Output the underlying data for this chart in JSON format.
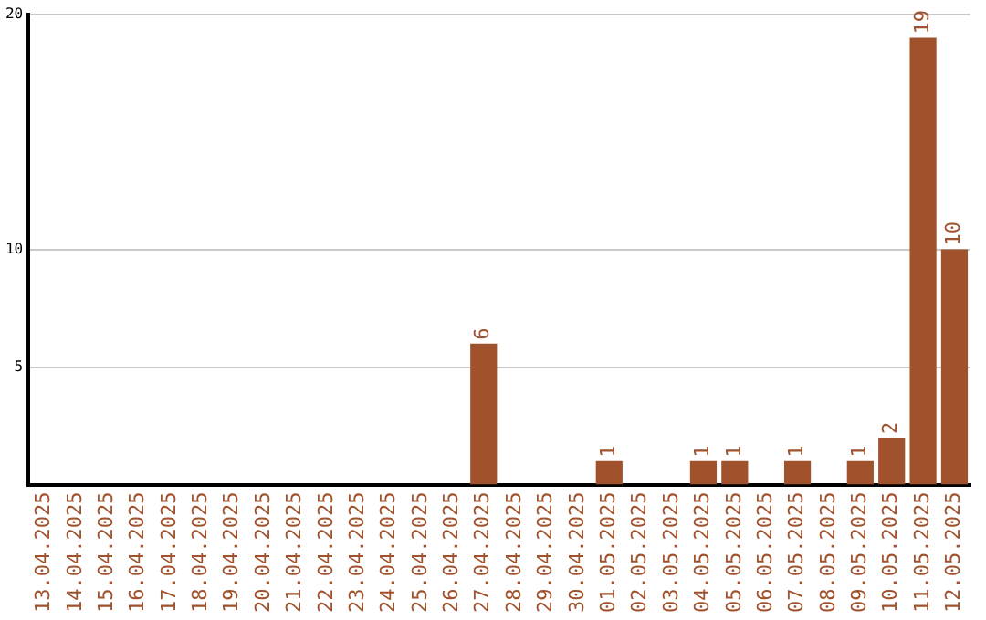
{
  "chart_data": {
    "type": "bar",
    "categories": [
      "13.04.2025",
      "14.04.2025",
      "15.04.2025",
      "16.04.2025",
      "17.04.2025",
      "18.04.2025",
      "19.04.2025",
      "20.04.2025",
      "21.04.2025",
      "22.04.2025",
      "23.04.2025",
      "24.04.2025",
      "25.04.2025",
      "26.04.2025",
      "27.04.2025",
      "28.04.2025",
      "29.04.2025",
      "30.04.2025",
      "01.05.2025",
      "02.05.2025",
      "03.05.2025",
      "04.05.2025",
      "05.05.2025",
      "06.05.2025",
      "07.05.2025",
      "08.05.2025",
      "09.05.2025",
      "10.05.2025",
      "11.05.2025",
      "12.05.2025"
    ],
    "values": [
      0,
      0,
      0,
      0,
      0,
      0,
      0,
      0,
      0,
      0,
      0,
      0,
      0,
      0,
      6,
      0,
      0,
      0,
      1,
      0,
      0,
      1,
      1,
      0,
      1,
      0,
      1,
      2,
      19,
      10
    ],
    "value_labels": [
      null,
      null,
      null,
      null,
      null,
      null,
      null,
      null,
      null,
      null,
      null,
      null,
      null,
      null,
      "6",
      null,
      null,
      null,
      "1",
      null,
      null,
      "1",
      "1",
      null,
      "1",
      null,
      "1",
      "2",
      "19",
      "10"
    ],
    "color": "#a0522d",
    "ylim": [
      0,
      20
    ],
    "yticks": [
      5,
      10,
      20
    ],
    "grid": "y"
  }
}
